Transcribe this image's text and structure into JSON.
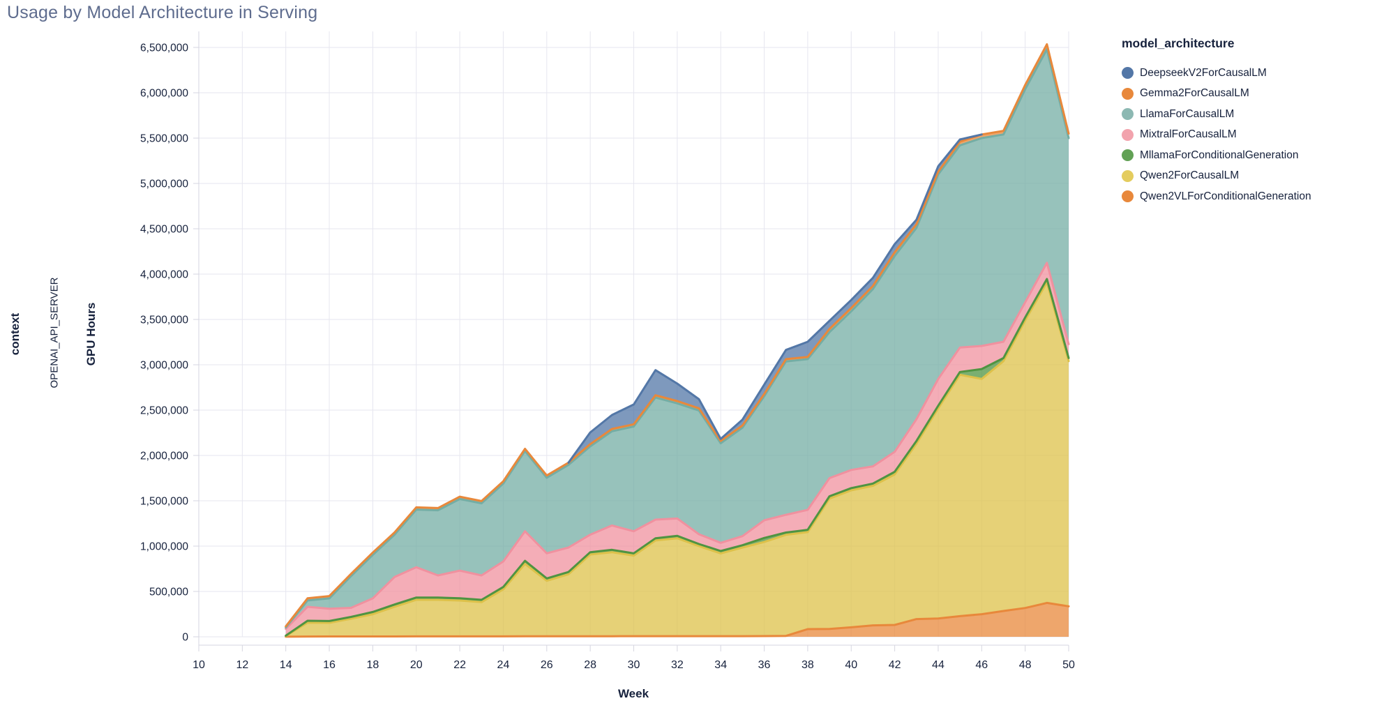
{
  "page": {
    "title": "Usage by Model Architecture in Serving",
    "title_color": "#5e6c8e",
    "background": "#ffffff"
  },
  "facet": {
    "row_header": "context",
    "row_value": "OPENAI_API_SERVER"
  },
  "axes": {
    "x_title": "Week",
    "y_title": "GPU Hours",
    "x_tick_labels": [
      "10",
      "12",
      "14",
      "16",
      "18",
      "20",
      "22",
      "24",
      "26",
      "28",
      "30",
      "32",
      "34",
      "36",
      "38",
      "40",
      "42",
      "44",
      "46",
      "48",
      "50"
    ],
    "y_tick_labels": [
      "0",
      "500,000",
      "1,000,000",
      "1,500,000",
      "2,000,000",
      "2,500,000",
      "3,000,000",
      "3,500,000",
      "4,000,000",
      "4,500,000",
      "5,000,000",
      "5,500,000",
      "6,000,000",
      "6,500,000"
    ]
  },
  "legend": {
    "title": "model_architecture",
    "items": [
      {
        "label": "DeepseekV2ForCausalLM",
        "color": "#5377a7"
      },
      {
        "label": "Gemma2ForCausalLM",
        "color": "#e8883b"
      },
      {
        "label": "LlamaForCausalLM",
        "color": "#8cb8b2"
      },
      {
        "label": "MixtralForCausalLM",
        "color": "#f2a3ad"
      },
      {
        "label": "MllamaForConditionalGeneration",
        "color": "#62a155"
      },
      {
        "label": "Qwen2ForCausalLM",
        "color": "#e4cc5e"
      },
      {
        "label": "Qwen2VLForConditionalGeneration",
        "color": "#e8883b"
      }
    ]
  },
  "chart_data": {
    "type": "area",
    "stacked": true,
    "title": "Usage by Model Architecture in Serving",
    "xlabel": "Week",
    "ylabel": "GPU Hours",
    "xlim": [
      10,
      50
    ],
    "ylim": [
      0,
      6500000
    ],
    "x_tick_step": 2,
    "y_tick_step": 500000,
    "grid": true,
    "legend_position": "right",
    "x": [
      14,
      15,
      16,
      17,
      18,
      19,
      20,
      21,
      22,
      23,
      24,
      25,
      26,
      27,
      28,
      29,
      30,
      31,
      32,
      33,
      34,
      35,
      36,
      37,
      38,
      39,
      40,
      41,
      42,
      43,
      44,
      45,
      46,
      47,
      48,
      49,
      50
    ],
    "stack_order_bottom_to_top": [
      "Qwen2VLForConditionalGeneration",
      "Qwen2ForCausalLM",
      "MllamaForConditionalGeneration",
      "MixtralForCausalLM",
      "LlamaForCausalLM",
      "Gemma2ForCausalLM",
      "DeepseekV2ForCausalLM"
    ],
    "series": [
      {
        "name": "Qwen2VLForConditionalGeneration",
        "stroke": "#e8883b",
        "values": [
          1000,
          3000,
          4000,
          4000,
          4000,
          4000,
          5000,
          5000,
          5000,
          5000,
          5000,
          6000,
          6000,
          6000,
          6000,
          6000,
          7000,
          7000,
          7000,
          7000,
          7000,
          7000,
          8000,
          10000,
          85000,
          87000,
          105000,
          126000,
          131000,
          195000,
          202000,
          228000,
          249000,
          285000,
          318000,
          374000,
          336000
        ]
      },
      {
        "name": "Qwen2ForCausalLM",
        "stroke": "#ddc14a",
        "values": [
          8000,
          153000,
          150000,
          195000,
          245000,
          327000,
          403000,
          403000,
          395000,
          377000,
          518000,
          799000,
          612000,
          684000,
          902000,
          927000,
          888000,
          1055000,
          1080000,
          993000,
          913000,
          978000,
          1037000,
          1115000,
          1070000,
          1438000,
          1510000,
          1539000,
          1659000,
          1935000,
          2318000,
          2662000,
          2595000,
          2755000,
          3172000,
          3536000,
          2704000
        ]
      },
      {
        "name": "MllamaForConditionalGeneration",
        "stroke": "#4f9441",
        "values": [
          3000,
          21000,
          20000,
          20000,
          25000,
          25000,
          25000,
          25000,
          25000,
          26000,
          26000,
          33000,
          26000,
          25000,
          25000,
          26000,
          26000,
          25000,
          26000,
          23000,
          26000,
          25000,
          45000,
          25000,
          25000,
          25000,
          25000,
          25000,
          30000,
          30000,
          29000,
          31000,
          109000,
          34000,
          33000,
          36000,
          34000
        ]
      },
      {
        "name": "MixtralForCausalLM",
        "stroke": "#f0919f",
        "values": [
          75000,
          154000,
          135000,
          100000,
          150000,
          303000,
          334000,
          244000,
          305000,
          269000,
          282000,
          326000,
          277000,
          270000,
          193000,
          269000,
          243000,
          205000,
          192000,
          108000,
          90000,
          100000,
          195000,
          195000,
          220000,
          200000,
          200000,
          190000,
          220000,
          240000,
          295000,
          269000,
          255000,
          180000,
          167000,
          179000,
          154000
        ]
      },
      {
        "name": "LlamaForCausalLM",
        "stroke": "#74ada4",
        "values": [
          15000,
          70000,
          115000,
          350000,
          480000,
          467000,
          636000,
          718000,
          790000,
          795000,
          859000,
          885000,
          833000,
          911000,
          974000,
          1039000,
          1155000,
          1347000,
          1270000,
          1364000,
          1099000,
          1196000,
          1367000,
          1692000,
          1662000,
          1610000,
          1750000,
          1955000,
          2160000,
          2110000,
          2256000,
          2230000,
          2292000,
          2286000,
          2350000,
          2355000,
          2272000
        ]
      },
      {
        "name": "Gemma2ForCausalLM",
        "stroke": "#e8883b",
        "values": [
          13000,
          24000,
          25000,
          25000,
          25000,
          25000,
          25000,
          25000,
          25000,
          25000,
          25000,
          25000,
          25000,
          25000,
          25000,
          25000,
          25000,
          25000,
          25000,
          25000,
          25000,
          25000,
          25000,
          25000,
          25000,
          35000,
          36000,
          34000,
          41000,
          40000,
          30000,
          40000,
          40000,
          40000,
          47000,
          55000,
          49000
        ]
      },
      {
        "name": "DeepseekV2ForCausalLM",
        "stroke": "#5377a7",
        "values": [
          0,
          0,
          0,
          0,
          0,
          0,
          0,
          0,
          0,
          0,
          0,
          0,
          0,
          0,
          129000,
          154000,
          218000,
          277000,
          192000,
          100000,
          22000,
          64000,
          103000,
          102000,
          167000,
          90000,
          89000,
          90000,
          90000,
          50000,
          60000,
          25000,
          0,
          0,
          0,
          0,
          0
        ]
      }
    ]
  },
  "style": {
    "gridline_color": "#e6e6ef",
    "axis_line_color": "#d6d6e0",
    "tick_label_color": "#16213c",
    "fill_opacity": 0.75
  }
}
